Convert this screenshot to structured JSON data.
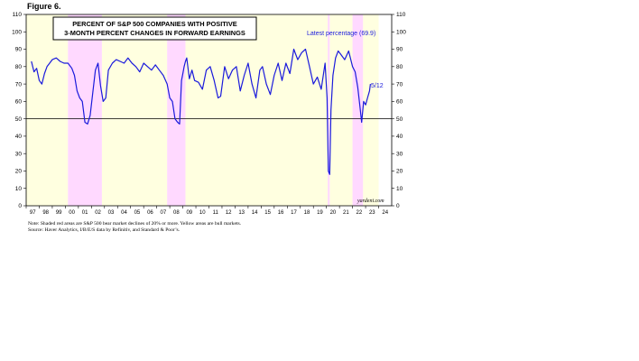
{
  "figure_label": "Figure 6.",
  "colors": {
    "bull": "#ffffe0",
    "bear": "#ffd9ff",
    "line": "#1a1adc",
    "refline": "#000000"
  },
  "notes": {
    "note": "Note: Shaded red areas are S&P 500 bear market declines of 20% or more. Yellow areas are bull markets.",
    "source": "Source: Haver Analytics, I/B/E/S data by Refinitiv, and Standard & Poor’s."
  },
  "chart_data": {
    "type": "line",
    "title": [
      "PERCENT OF S&P 500 COMPANIES WITH POSITIVE",
      "3-MONTH PERCENT CHANGES IN FORWARD EARNINGS"
    ],
    "legend": "Latest percentage (69.9)",
    "annotation": "5/12",
    "watermark": "yardeni.com",
    "ylim": [
      0,
      110
    ],
    "yticks": [
      "0",
      "10",
      "20",
      "30",
      "40",
      "50",
      "60",
      "70",
      "80",
      "90",
      "100",
      "110"
    ],
    "xlim": [
      1997,
      2025
    ],
    "xticks": [
      "97",
      "98",
      "99",
      "00",
      "01",
      "02",
      "03",
      "04",
      "05",
      "06",
      "07",
      "08",
      "09",
      "10",
      "11",
      "12",
      "13",
      "14",
      "15",
      "16",
      "17",
      "18",
      "19",
      "20",
      "21",
      "22",
      "23",
      "24"
    ],
    "reference_line": 50,
    "bear_markets": [
      [
        2000.2,
        2002.8
      ],
      [
        2007.8,
        2009.2
      ],
      [
        2020.1,
        2020.25
      ],
      [
        2022.0,
        2022.8
      ]
    ],
    "bull_markets": [
      [
        1997.0,
        2000.2
      ],
      [
        2002.8,
        2007.8
      ],
      [
        2009.2,
        2020.1
      ],
      [
        2020.25,
        2022.0
      ],
      [
        2022.8,
        2024.0
      ]
    ],
    "series": [
      {
        "x": [
          1997.4,
          1997.6,
          1997.8,
          1998.0,
          1998.2,
          1998.4,
          1998.6,
          1998.8,
          1999.0,
          1999.3,
          1999.6,
          1999.9,
          2000.2,
          2000.5,
          2000.7,
          2000.9,
          2001.1,
          2001.3,
          2001.5,
          2001.7,
          2001.9,
          2002.1,
          2002.3,
          2002.5,
          2002.7,
          2002.9,
          2003.1,
          2003.3,
          2003.6,
          2003.9,
          2004.2,
          2004.5,
          2004.8,
          2005.1,
          2005.4,
          2005.7,
          2006.0,
          2006.3,
          2006.6,
          2006.9,
          2007.2,
          2007.5,
          2007.8,
          2008.0,
          2008.2,
          2008.4,
          2008.6,
          2008.75,
          2008.9,
          2009.0,
          2009.1,
          2009.2,
          2009.3,
          2009.5,
          2009.7,
          2009.9,
          2010.2,
          2010.5,
          2010.8,
          2011.1,
          2011.4,
          2011.7,
          2011.9,
          2012.2,
          2012.5,
          2012.8,
          2013.1,
          2013.4,
          2013.7,
          2014.0,
          2014.3,
          2014.6,
          2014.9,
          2015.1,
          2015.4,
          2015.7,
          2016.0,
          2016.3,
          2016.6,
          2016.9,
          2017.2,
          2017.5,
          2017.8,
          2018.1,
          2018.4,
          2018.7,
          2019.0,
          2019.3,
          2019.6,
          2019.9,
          2020.05,
          2020.15,
          2020.25,
          2020.35,
          2020.5,
          2020.7,
          2020.9,
          2021.1,
          2021.4,
          2021.7,
          2022.0,
          2022.2,
          2022.4,
          2022.55,
          2022.7,
          2022.85,
          2023.0,
          2023.15,
          2023.3,
          2023.37
        ],
        "y": [
          83,
          77,
          79,
          72,
          70,
          76,
          80,
          82,
          84,
          85,
          83,
          82,
          82,
          79,
          75,
          66,
          62,
          60,
          48,
          47,
          52,
          65,
          78,
          82,
          69,
          60,
          62,
          78,
          82,
          84,
          83,
          82,
          85,
          82,
          80,
          77,
          82,
          80,
          78,
          81,
          78,
          75,
          70,
          62,
          60,
          50,
          48,
          47,
          72,
          76,
          80,
          83,
          85,
          73,
          78,
          72,
          71,
          67,
          78,
          80,
          72,
          62,
          63,
          80,
          73,
          78,
          80,
          66,
          75,
          82,
          70,
          62,
          78,
          80,
          70,
          64,
          75,
          82,
          72,
          82,
          76,
          90,
          84,
          88,
          90,
          80,
          70,
          74,
          67,
          82,
          62,
          20,
          18,
          55,
          75,
          85,
          89,
          87,
          84,
          89,
          80,
          77,
          68,
          58,
          48,
          60,
          58,
          62,
          66,
          70
        ]
      }
    ]
  }
}
